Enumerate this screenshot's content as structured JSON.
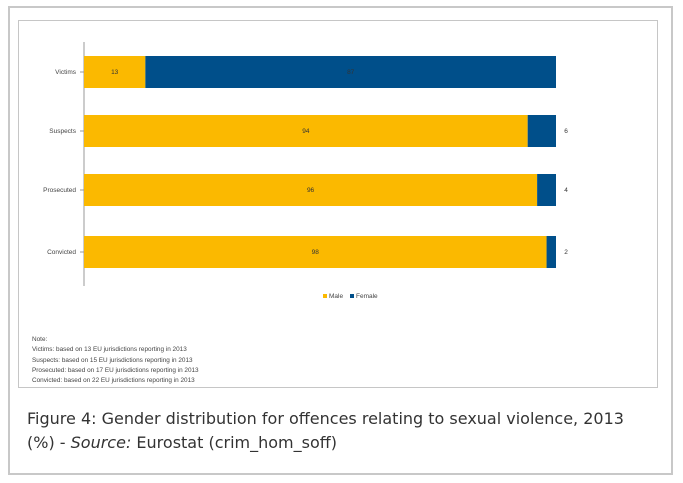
{
  "chart_data": {
    "type": "bar",
    "orientation": "horizontal",
    "stacked": true,
    "categories": [
      "Victims",
      "Suspects",
      "Prosecuted",
      "Convicted"
    ],
    "series": [
      {
        "name": "Male",
        "values": [
          13,
          94,
          96,
          98
        ],
        "color": "#fbb900"
      },
      {
        "name": "Female",
        "values": [
          87,
          6,
          4,
          2
        ],
        "color": "#004f8a"
      }
    ],
    "xlim": [
      0,
      100
    ],
    "grid": false,
    "legend_position": "bottom"
  },
  "notes": {
    "heading": "Note:",
    "lines": [
      "Victims: based on 13 EU jurisdictions reporting in 2013",
      "Suspects: based on 15 EU jurisdictions reporting in 2013",
      "Prosecuted: based on 17 EU jurisdictions reporting in 2013",
      "Convicted: based on 22 EU jurisdictions reporting in 2013"
    ]
  },
  "caption": {
    "prefix": "Figure 4: Gender distribution for offences relating to sexual violence, 2013 (%) - ",
    "source_label": "Source:",
    "source_text": " Eurostat (crim_hom_soff)"
  }
}
